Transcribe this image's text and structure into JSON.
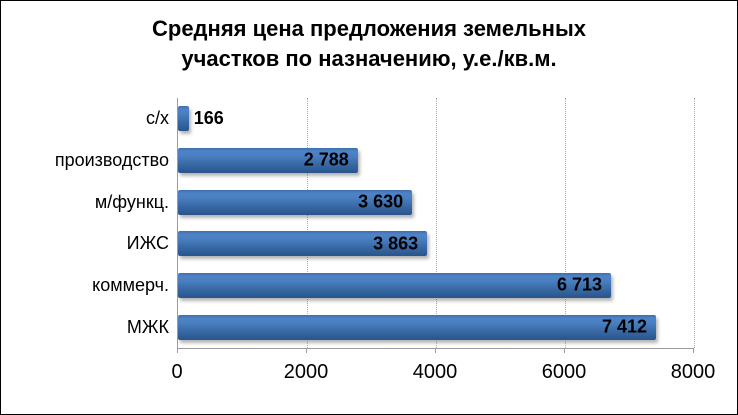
{
  "title": {
    "line1": "Средняя цена предложения земельных",
    "line2": "участков по назначению, у.е./кв.м."
  },
  "chart_data": {
    "type": "bar",
    "orientation": "horizontal",
    "title": "Средняя цена предложения земельных участков по назначению, у.е./кв.м.",
    "categories": [
      "с/х",
      "производство",
      "м/функц.",
      "ИЖС",
      "коммерч.",
      "МЖК"
    ],
    "values": [
      166,
      2788,
      3630,
      3863,
      6713,
      7412
    ],
    "value_labels": [
      "166",
      "2 788",
      "3 630",
      "3 863",
      "6 713",
      "7 412"
    ],
    "xlim": [
      0,
      8000
    ],
    "x_ticks": [
      0,
      2000,
      4000,
      6000,
      8000
    ],
    "x_tick_labels": [
      "0",
      "2000",
      "4000",
      "6000",
      "8000"
    ],
    "grid": "vertical-dotted",
    "legend": "none",
    "value_label_position": "inside-end (outside for smallest bar)",
    "colors": {
      "bar_gradient_top": "#4e84c7",
      "bar_gradient_bottom": "#2a5589",
      "axis": "#9c9c9c",
      "gridline": "#ababab",
      "text": "#000000",
      "background": "#ffffff",
      "border": "#000000"
    }
  }
}
